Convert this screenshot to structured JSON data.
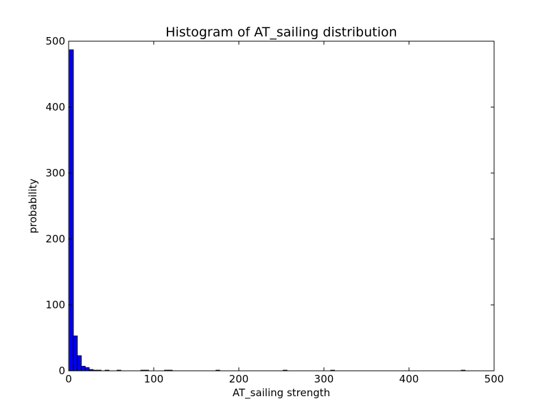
{
  "chart_data": {
    "type": "bar",
    "title": "Histogram of AT_sailing  distribution",
    "xlabel": "AT_sailing  strength",
    "ylabel": "probability",
    "xlim": [
      0,
      500
    ],
    "ylim": [
      0,
      500
    ],
    "xticks": [
      0,
      100,
      200,
      300,
      400,
      500
    ],
    "yticks": [
      0,
      100,
      200,
      300,
      400,
      500
    ],
    "grid": false,
    "bar_color": "#0000ff",
    "edge_color": "#000000",
    "bins": {
      "start": 1,
      "width": 4.65,
      "counts": [
        487,
        53,
        23,
        7,
        5,
        2,
        1,
        1,
        0,
        1,
        0,
        0,
        1,
        0,
        0,
        0,
        0,
        0,
        1,
        1,
        0,
        0,
        0,
        0,
        1,
        1,
        0,
        0,
        0,
        0,
        0,
        0,
        0,
        0,
        0,
        0,
        0,
        1,
        0,
        0,
        0,
        0,
        0,
        0,
        0,
        0,
        0,
        0,
        0,
        0,
        0,
        0,
        0,
        0,
        1,
        0,
        0,
        0,
        0,
        0,
        0,
        0,
        0,
        0,
        0,
        0,
        1,
        0,
        0,
        0,
        0,
        0,
        0,
        0,
        0,
        0,
        0,
        0,
        0,
        0,
        0,
        0,
        0,
        0,
        0,
        0,
        0,
        0,
        0,
        0,
        0,
        0,
        0,
        0,
        0,
        0,
        0,
        0,
        0,
        1
      ]
    }
  }
}
